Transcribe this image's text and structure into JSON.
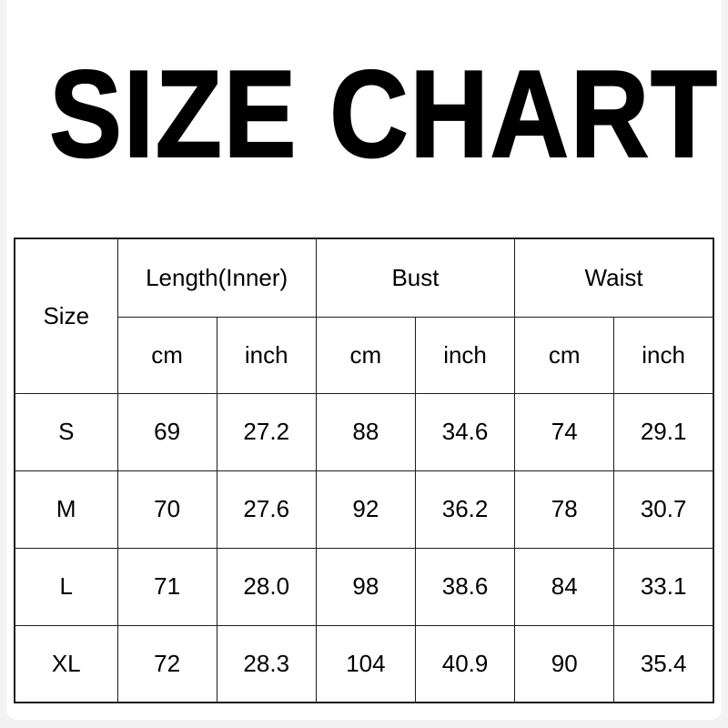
{
  "title": "SIZE CHART",
  "table": {
    "corner_label": "Size",
    "groups": [
      {
        "label": "Length(Inner)"
      },
      {
        "label": "Bust"
      },
      {
        "label": "Waist"
      }
    ],
    "sub_headers": [
      "cm",
      "inch",
      "cm",
      "inch",
      "cm",
      "inch"
    ],
    "rows": [
      {
        "size": "S",
        "values": [
          "69",
          "27.2",
          "88",
          "34.6",
          "74",
          "29.1"
        ]
      },
      {
        "size": "M",
        "values": [
          "70",
          "27.6",
          "92",
          "36.2",
          "78",
          "30.7"
        ]
      },
      {
        "size": "L",
        "values": [
          "71",
          "28.0",
          "98",
          "38.6",
          "84",
          "33.1"
        ]
      },
      {
        "size": "XL",
        "values": [
          "72",
          "28.3",
          "104",
          "40.9",
          "90",
          "35.4"
        ]
      }
    ]
  },
  "chart_data": {
    "type": "table",
    "title": "SIZE CHART",
    "column_groups": [
      "Size",
      "Length(Inner)",
      "Bust",
      "Waist"
    ],
    "columns": [
      "Size",
      "Length(Inner) cm",
      "Length(Inner) inch",
      "Bust cm",
      "Bust inch",
      "Waist cm",
      "Waist inch"
    ],
    "rows": [
      [
        "S",
        69,
        27.2,
        88,
        34.6,
        74,
        29.1
      ],
      [
        "M",
        70,
        27.6,
        92,
        36.2,
        78,
        30.7
      ],
      [
        "L",
        71,
        28.0,
        98,
        38.6,
        84,
        33.1
      ],
      [
        "XL",
        72,
        28.3,
        104,
        40.9,
        90,
        35.4
      ]
    ]
  },
  "colors": {
    "table_border": "#1d1d1d",
    "text": "#000000",
    "card_background": "#ffffff",
    "page_edge": "#f2f2f2"
  }
}
